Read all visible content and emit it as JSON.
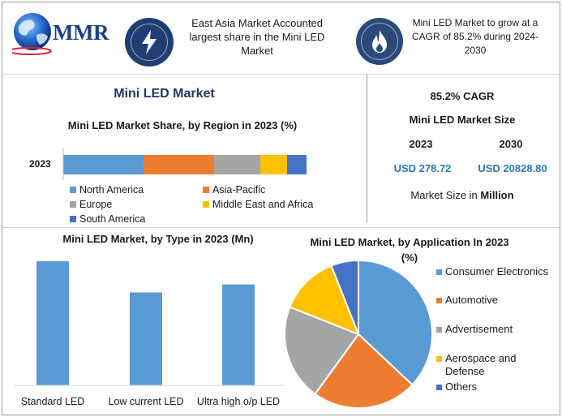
{
  "brand": {
    "logo_text": "MMR"
  },
  "header": {
    "fact1": "East Asia Market Accounted largest share in the Mini LED Market",
    "fact2": "Mini LED Market to grow at a CAGR of 85.2% during 2024-2030",
    "icon1": "lightning-icon",
    "icon2": "flame-icon"
  },
  "main_title": "Mini LED Market",
  "kpis": {
    "cagr": "85.2% CAGR",
    "size_title": "Mini LED Market Size",
    "year_a": "2023",
    "year_b": "2030",
    "value_a": "USD 278.72",
    "value_b": "USD 20828.80",
    "unit_prefix": "Market Size in ",
    "unit_bold": "Million"
  },
  "colors": {
    "blue": "#5b9bd5",
    "orange": "#ed7d31",
    "gray": "#a5a5a5",
    "yellow": "#ffc000",
    "darkblue": "#4472c4"
  },
  "chart_data": [
    {
      "type": "bar",
      "orientation": "horizontal",
      "stacked": true,
      "title": "Mini LED Market Share, by Region in 2023 (%)",
      "categories": [
        "2023"
      ],
      "series": [
        {
          "name": "North America",
          "values": [
            33
          ],
          "color": "#5b9bd5"
        },
        {
          "name": "Asia-Pacific",
          "values": [
            29
          ],
          "color": "#ed7d31"
        },
        {
          "name": "Europe",
          "values": [
            19
          ],
          "color": "#a5a5a5"
        },
        {
          "name": "Middle East and Africa",
          "values": [
            11
          ],
          "color": "#ffc000"
        },
        {
          "name": "South America",
          "values": [
            8
          ],
          "color": "#4472c4"
        }
      ],
      "xlim": [
        0,
        100
      ]
    },
    {
      "type": "bar",
      "title": "Mini LED Market, by Type in 2023 (Mn)",
      "categories": [
        "Standard LED",
        "Low current LED",
        "Ultra high o/p LED"
      ],
      "values": [
        155,
        116,
        126
      ],
      "ylim": [
        0,
        160
      ],
      "color": "#5b9bd5"
    },
    {
      "type": "pie",
      "title": "Mini LED Market, by Application In 2023 (%)",
      "labels": [
        "Consumer Electronics",
        "Automotive",
        "Advertisement",
        "Aerospace and Defense",
        "Others"
      ],
      "values": [
        37,
        23,
        21,
        13,
        6
      ],
      "colors": [
        "#5b9bd5",
        "#ed7d31",
        "#a5a5a5",
        "#ffc000",
        "#4472c4"
      ]
    }
  ]
}
